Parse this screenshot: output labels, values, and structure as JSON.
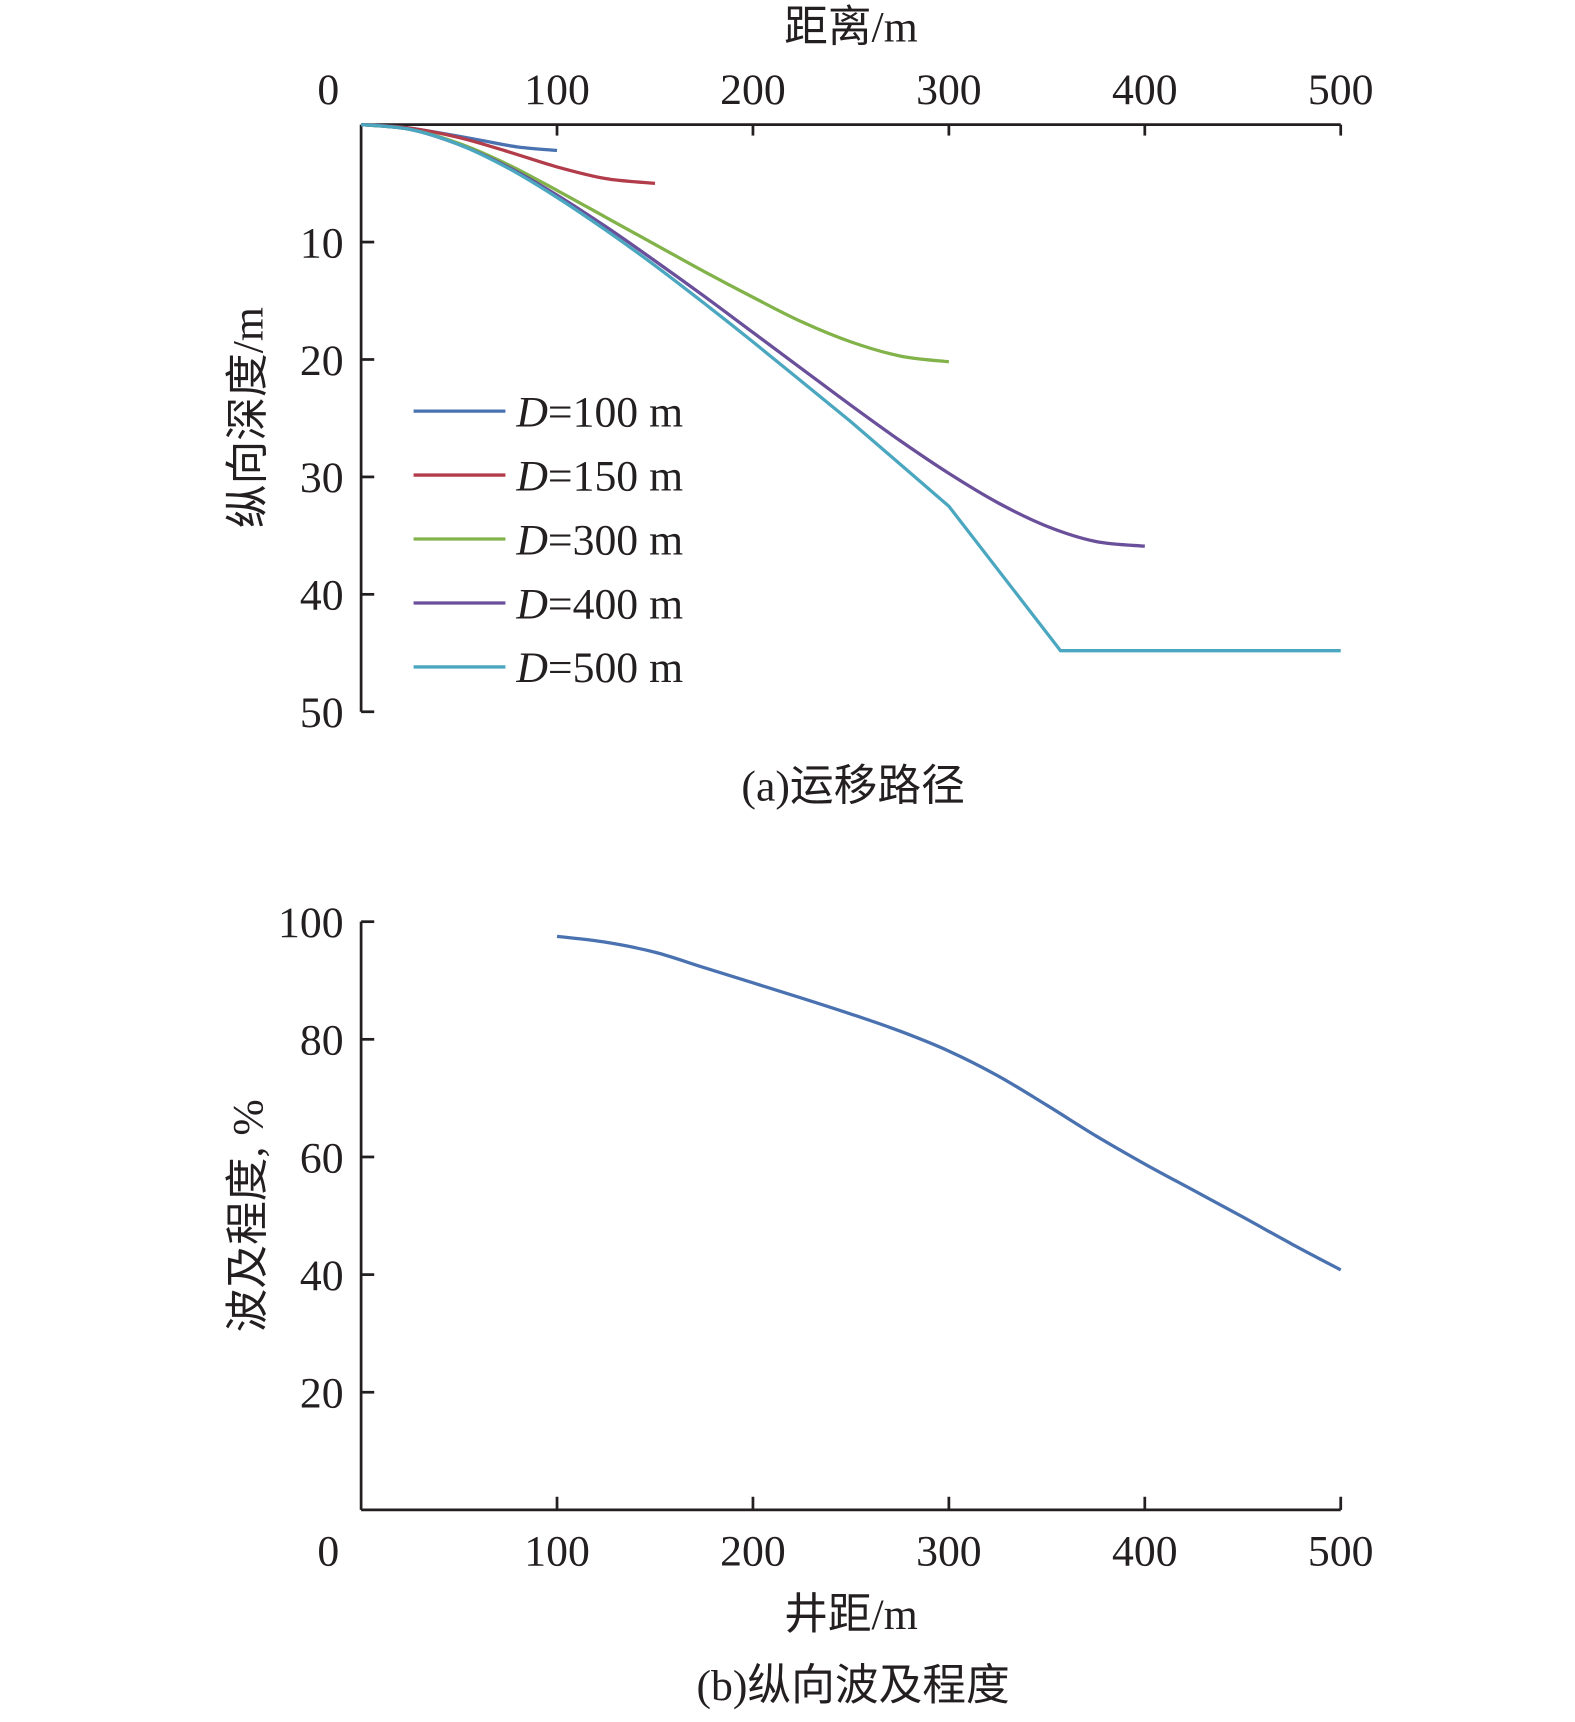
{
  "chart_data": [
    {
      "type": "line",
      "title": "(a)运移路径",
      "xlabel": "距离/m",
      "ylabel": "纵向深度/m",
      "xlim": [
        0,
        500
      ],
      "ylim": [
        0,
        50
      ],
      "y_inverted": true,
      "x_axis_position": "top",
      "xticks": [
        "0",
        "100",
        "200",
        "300",
        "400",
        "500"
      ],
      "yticks": [
        "10",
        "20",
        "30",
        "40",
        "50"
      ],
      "grid": false,
      "legend_position": "left-middle",
      "series": [
        {
          "name": "D=100 m",
          "legend_italic": "D",
          "legend_rest": "=100 m",
          "color": "#4a72b0",
          "x": [
            0,
            20,
            40,
            60,
            80,
            100
          ],
          "y": [
            0,
            0.2,
            0.7,
            1.3,
            1.9,
            2.2
          ]
        },
        {
          "name": "D=150 m",
          "legend_italic": "D",
          "legend_rest": "=150 m",
          "color": "#b23c4a",
          "x": [
            0,
            25,
            50,
            75,
            100,
            125,
            150
          ],
          "y": [
            0,
            0.3,
            1.1,
            2.3,
            3.6,
            4.6,
            5.0
          ]
        },
        {
          "name": "D=300 m",
          "legend_italic": "D",
          "legend_rest": "=300 m",
          "color": "#82b24a",
          "x": [
            0,
            25,
            50,
            75,
            100,
            125,
            150,
            175,
            200,
            225,
            250,
            275,
            300
          ],
          "y": [
            0,
            0.4,
            1.6,
            3.4,
            5.6,
            7.9,
            10.2,
            12.5,
            14.7,
            16.8,
            18.5,
            19.7,
            20.2
          ]
        },
        {
          "name": "D=400 m",
          "legend_italic": "D",
          "legend_rest": "=400 m",
          "color": "#6a4f9a",
          "x": [
            0,
            25,
            50,
            75,
            100,
            125,
            150,
            175,
            200,
            225,
            250,
            275,
            300,
            325,
            350,
            375,
            400
          ],
          "y": [
            0,
            0.4,
            1.7,
            3.6,
            6.0,
            8.7,
            11.6,
            14.6,
            17.7,
            20.8,
            23.9,
            26.9,
            29.7,
            32.2,
            34.2,
            35.5,
            35.9
          ]
        },
        {
          "name": "D=500 m",
          "legend_italic": "D",
          "legend_rest": "=500 m",
          "color": "#4ba7c0",
          "x": [
            0,
            25,
            50,
            75,
            100,
            125,
            150,
            175,
            200,
            250,
            300,
            357,
            400,
            500
          ],
          "y": [
            0,
            0.4,
            1.7,
            3.7,
            6.2,
            9.0,
            12.0,
            15.2,
            18.5,
            25.3,
            32.5,
            44.8,
            44.8,
            44.8
          ]
        }
      ]
    },
    {
      "type": "line",
      "title": "(b)纵向波及程度",
      "xlabel": "井距/m",
      "ylabel": "波及程度, %",
      "xlim": [
        0,
        500
      ],
      "ylim": [
        0,
        100
      ],
      "xticks": [
        "0",
        "100",
        "200",
        "300",
        "400",
        "500"
      ],
      "yticks": [
        "20",
        "40",
        "60",
        "80",
        "100"
      ],
      "grid": false,
      "series": [
        {
          "name": "波及程度",
          "color": "#4a72b0",
          "x": [
            100,
            125,
            150,
            175,
            200,
            225,
            250,
            275,
            300,
            325,
            350,
            375,
            400,
            425,
            450,
            475,
            500
          ],
          "y": [
            97.5,
            96.5,
            94.8,
            92.2,
            89.6,
            87.0,
            84.3,
            81.4,
            78.0,
            73.8,
            68.8,
            63.6,
            58.8,
            54.3,
            49.8,
            45.2,
            40.8
          ]
        }
      ]
    }
  ]
}
